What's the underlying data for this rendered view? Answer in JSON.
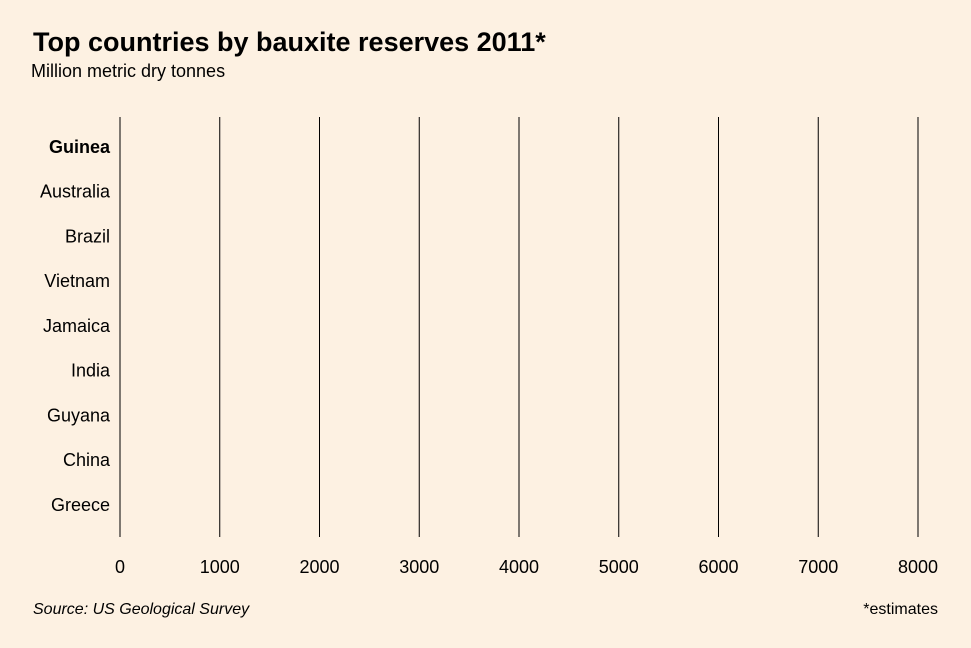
{
  "chart_data": {
    "type": "bar",
    "orientation": "horizontal",
    "title": "Top countries by bauxite reserves 2011*",
    "subtitle": "Million metric dry tonnes",
    "categories": [
      "Guinea",
      "Australia",
      "Brazil",
      "Vietnam",
      "Jamaica",
      "India",
      "Guyana",
      "China",
      "Greece"
    ],
    "xlim": [
      0,
      8000
    ],
    "xticks": [
      0,
      1000,
      2000,
      3000,
      4000,
      5000,
      6000,
      7000,
      8000
    ],
    "grid": true,
    "source": "Source: US Geological Survey",
    "note": "*estimates"
  }
}
